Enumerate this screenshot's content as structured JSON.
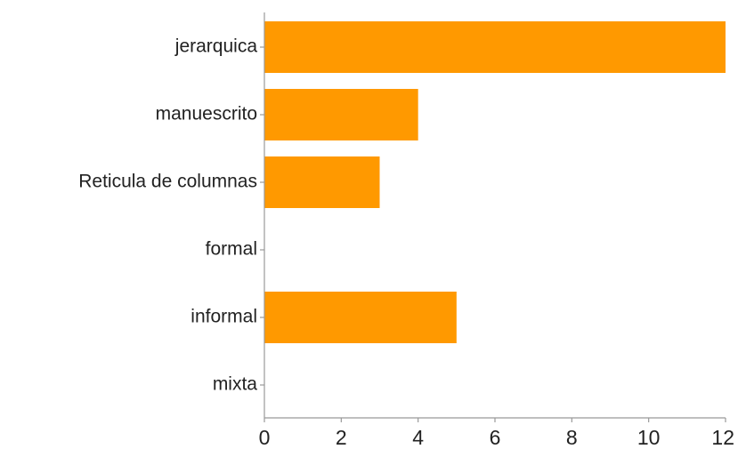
{
  "chart_data": {
    "type": "bar",
    "orientation": "horizontal",
    "categories": [
      "jerarquica",
      "manuescrito",
      "Reticula de columnas",
      "formal",
      "informal",
      "mixta"
    ],
    "values": [
      12,
      4,
      3,
      0,
      5,
      0
    ],
    "xlim": [
      0,
      12
    ],
    "xticks": [
      0,
      2,
      4,
      6,
      8,
      10,
      12
    ],
    "tick_labels": [
      "0",
      "2",
      "4",
      "6",
      "8",
      "10",
      "12"
    ],
    "title": "",
    "xlabel": "",
    "ylabel": "",
    "bar_color": "#ff9900",
    "grid": false,
    "legend": "none"
  }
}
